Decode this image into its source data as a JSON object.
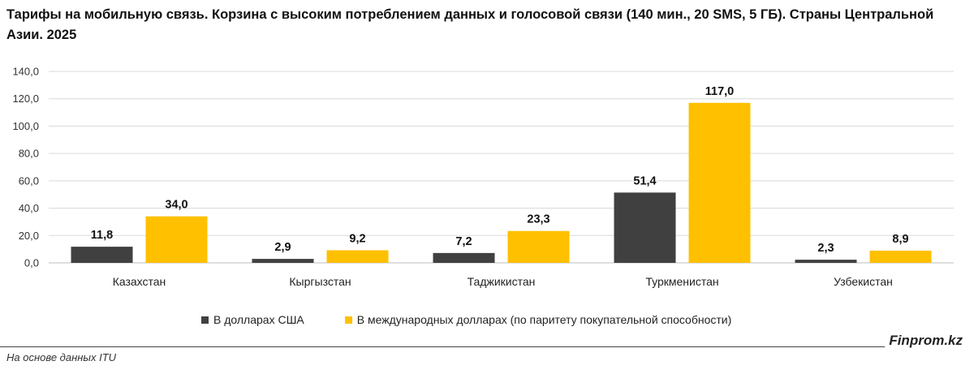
{
  "title": "Тарифы на мобильную связь. Корзина с высоким потреблением данных и голосовой связи (140 мин., 20 SMS, 5 ГБ). Страны Центральной Азии. 2025",
  "source": "На основе данных ITU",
  "brand": "Finprom.kz",
  "colors": {
    "usd": "#404040",
    "ppp": "#FFC000",
    "grid": "#d9d9d9",
    "axis": "#bfbfbf"
  },
  "chart_data": {
    "type": "bar",
    "categories": [
      "Казахстан",
      "Кыргызстан",
      "Таджикистан",
      "Туркменистан",
      "Узбекистан"
    ],
    "series": [
      {
        "name": "В долларах США",
        "values": [
          11.8,
          2.9,
          7.2,
          51.4,
          2.3
        ],
        "labels": [
          "11,8",
          "2,9",
          "7,2",
          "51,4",
          "2,3"
        ]
      },
      {
        "name": "В международных долларах (по паритету покупательной способности)",
        "values": [
          34.0,
          9.2,
          23.3,
          117.0,
          8.9
        ],
        "labels": [
          "34,0",
          "9,2",
          "23,3",
          "117,0",
          "8,9"
        ]
      }
    ],
    "ylim": [
      0,
      140
    ],
    "yticks": [
      0,
      20,
      40,
      60,
      80,
      100,
      120,
      140
    ],
    "ytick_labels": [
      "0,0",
      "20,0",
      "40,0",
      "60,0",
      "80,0",
      "100,0",
      "120,0",
      "140,0"
    ],
    "grid": true,
    "legend_position": "bottom"
  }
}
